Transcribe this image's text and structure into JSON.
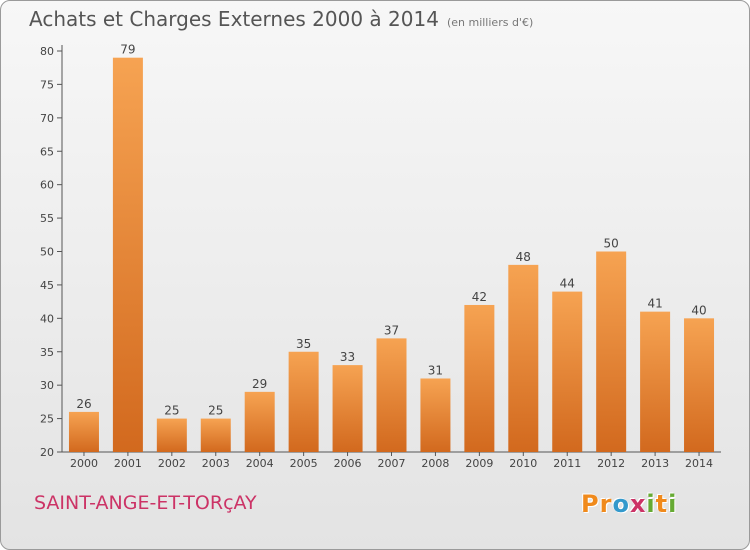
{
  "header": {
    "title": "Achats et Charges Externes 2000 à 2014",
    "subtitle": "(en milliers d'€)"
  },
  "footer": {
    "location": "SAINT-ANGE-ET-TORçAY",
    "logo_letters": [
      "P",
      "r",
      "o",
      "x",
      "i",
      "t",
      "i"
    ],
    "logo_colors": [
      "#f08a1c",
      "#f08a1c",
      "#3399cc",
      "#cc3366",
      "#66aa33",
      "#f08a1c",
      "#66aa33"
    ]
  },
  "chart_data": {
    "type": "bar",
    "categories": [
      "2000",
      "2001",
      "2002",
      "2003",
      "2004",
      "2005",
      "2006",
      "2007",
      "2008",
      "2009",
      "2010",
      "2011",
      "2012",
      "2013",
      "2014"
    ],
    "values": [
      26,
      79,
      25,
      25,
      29,
      35,
      33,
      37,
      31,
      42,
      48,
      44,
      50,
      41,
      40
    ],
    "title": "Achats et Charges Externes 2000 à 2014",
    "subtitle": "(en milliers d'€)",
    "ylim": [
      20,
      80
    ],
    "yticks": [
      20,
      25,
      30,
      35,
      40,
      45,
      50,
      55,
      60,
      65,
      70,
      75,
      80
    ],
    "grid": false,
    "bar_color_top": "#f6a352",
    "bar_color_bottom": "#d2691e"
  }
}
